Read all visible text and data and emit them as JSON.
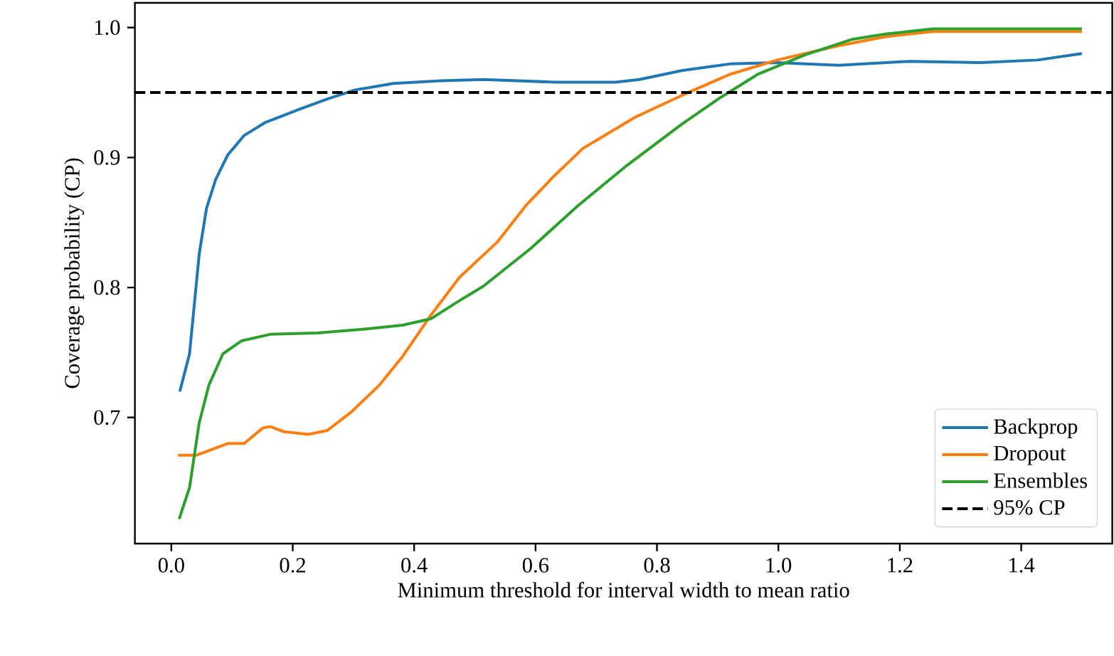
{
  "chart_data": {
    "type": "line",
    "xlabel": "Minimum threshold for interval width to mean ratio",
    "ylabel": "Coverage probability (CP)",
    "xlim": [
      -0.06,
      1.55
    ],
    "ylim": [
      0.603,
      1.019
    ],
    "xticks": [
      {
        "value": 0.0,
        "label": "0.0"
      },
      0.2,
      0.4,
      0.6,
      0.8,
      {
        "value": 1.0,
        "label": "1.0"
      },
      1.2,
      1.4
    ],
    "yticks": [
      0.7,
      0.8,
      0.9,
      {
        "value": 1.0,
        "label": "1.0"
      }
    ],
    "grid": false,
    "legend": "bottom right",
    "line_style": "solid",
    "marker": "none",
    "series": [
      {
        "name": "Backprop",
        "color": "#1f77b4",
        "x": [
          0.014,
          0.03,
          0.046,
          0.058,
          0.073,
          0.093,
          0.12,
          0.155,
          0.21,
          0.257,
          0.303,
          0.366,
          0.444,
          0.514,
          0.631,
          0.732,
          0.771,
          0.842,
          0.92,
          0.998,
          1.099,
          1.216,
          1.333,
          1.427,
          1.5
        ],
        "values": [
          0.72,
          0.749,
          0.826,
          0.861,
          0.883,
          0.902,
          0.917,
          0.927,
          0.937,
          0.945,
          0.952,
          0.957,
          0.959,
          0.96,
          0.958,
          0.958,
          0.96,
          0.967,
          0.972,
          0.973,
          0.971,
          0.974,
          0.973,
          0.975,
          0.98
        ]
      },
      {
        "name": "Dropout",
        "color": "#ff7f0e",
        "x": [
          0.011,
          0.042,
          0.093,
          0.12,
          0.151,
          0.163,
          0.186,
          0.226,
          0.257,
          0.296,
          0.343,
          0.381,
          0.428,
          0.475,
          0.537,
          0.584,
          0.631,
          0.678,
          0.764,
          0.842,
          0.92,
          0.998,
          1.099,
          1.177,
          1.255,
          1.5
        ],
        "values": [
          0.671,
          0.671,
          0.68,
          0.68,
          0.692,
          0.693,
          0.689,
          0.687,
          0.69,
          0.704,
          0.725,
          0.747,
          0.779,
          0.808,
          0.835,
          0.863,
          0.886,
          0.907,
          0.931,
          0.948,
          0.964,
          0.975,
          0.986,
          0.993,
          0.997,
          0.997
        ]
      },
      {
        "name": "Ensembles",
        "color": "#2ca02c",
        "x": [
          0.013,
          0.03,
          0.046,
          0.062,
          0.085,
          0.116,
          0.163,
          0.241,
          0.319,
          0.381,
          0.428,
          0.475,
          0.514,
          0.592,
          0.67,
          0.748,
          0.842,
          0.904,
          0.966,
          1.044,
          1.122,
          1.177,
          1.255,
          1.5
        ],
        "values": [
          0.622,
          0.646,
          0.696,
          0.725,
          0.749,
          0.759,
          0.764,
          0.765,
          0.768,
          0.771,
          0.776,
          0.79,
          0.801,
          0.83,
          0.863,
          0.893,
          0.926,
          0.946,
          0.964,
          0.979,
          0.991,
          0.995,
          0.999,
          0.999
        ]
      }
    ],
    "ref_lines": [
      {
        "axis": "y",
        "value": 0.95,
        "label": "95% CP",
        "color": "#000000",
        "line_style": "dashed"
      }
    ]
  }
}
